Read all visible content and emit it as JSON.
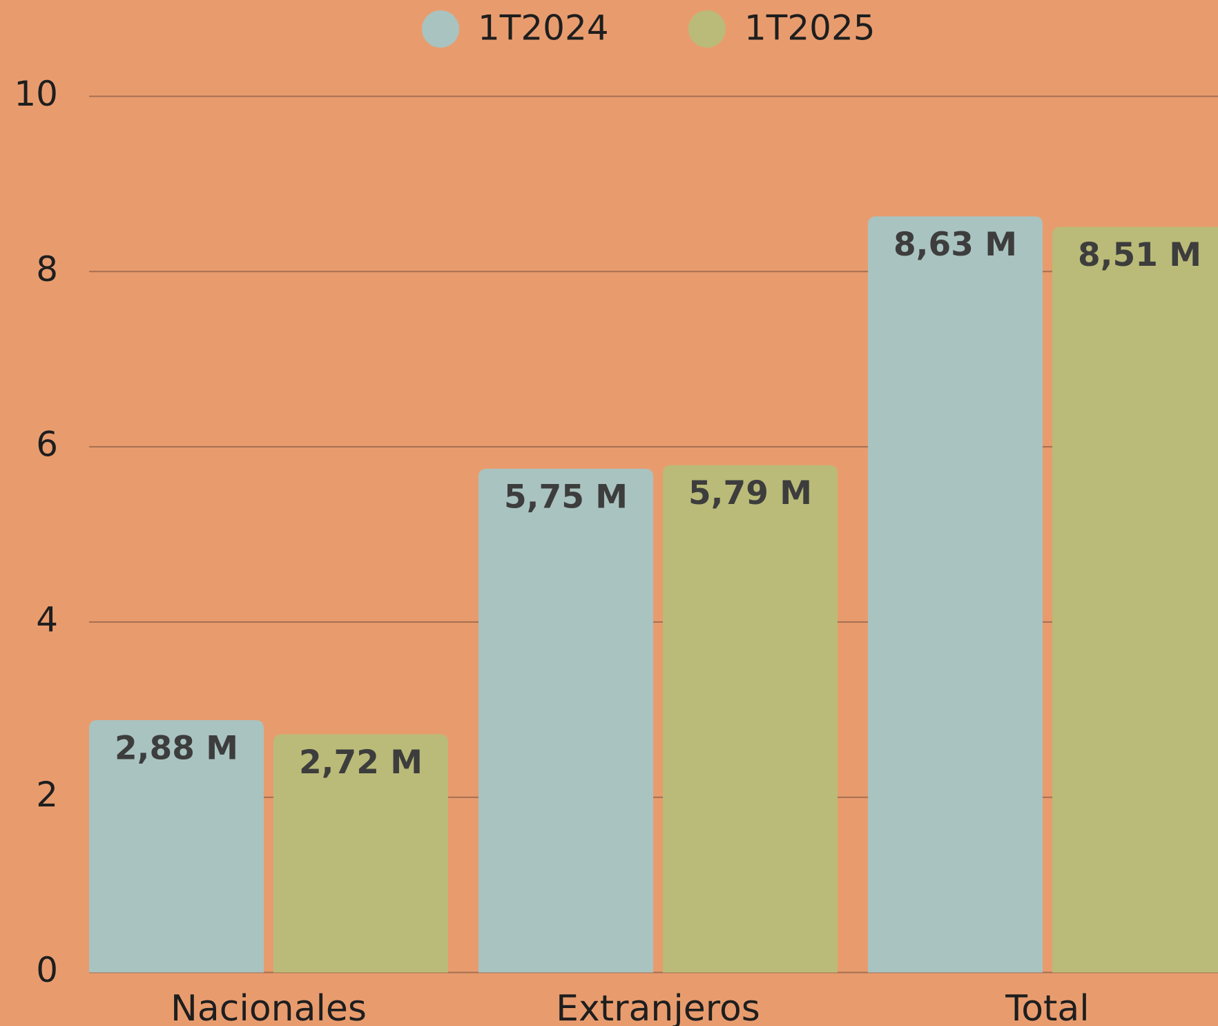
{
  "chart_data": {
    "type": "bar",
    "categories": [
      "Nacionales",
      "Extranjeros",
      "Total"
    ],
    "series": [
      {
        "name": "1T2024",
        "color": "#a9c3c0",
        "values": [
          2.88,
          5.75,
          8.63
        ],
        "value_labels": [
          "2,88 M",
          "5,75 M",
          "8,63 M"
        ]
      },
      {
        "name": "1T2025",
        "color": "#babb78",
        "values": [
          2.72,
          5.79,
          8.51
        ],
        "value_labels": [
          "2,72 M",
          "5,79 M",
          "8,51 M"
        ]
      }
    ],
    "ylim": [
      0,
      10
    ],
    "yticks": [
      0,
      2,
      4,
      6,
      8,
      10
    ],
    "grid": true,
    "legend": "top"
  }
}
